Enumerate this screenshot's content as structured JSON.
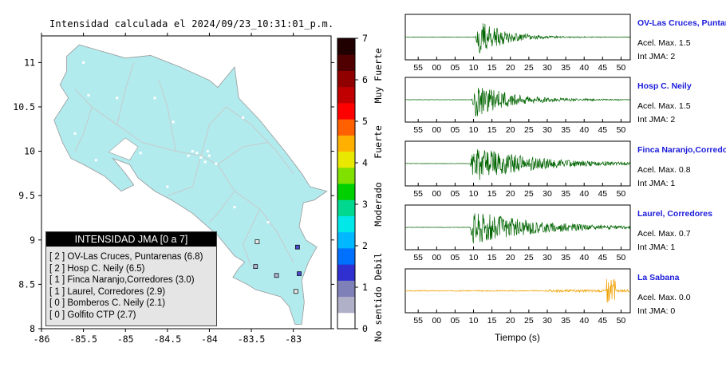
{
  "map": {
    "title": "Intensidad calculada el 2024/09/23_10:31:01_p.m.",
    "x_ticks": [
      "-86",
      "-85.5",
      "-85",
      "-84.5",
      "-84",
      "-83.5",
      "-83"
    ],
    "y_ticks": [
      "11",
      "10.5",
      "10",
      "9.5",
      "9",
      "8.5",
      "8"
    ],
    "land_color": "#b2ebee",
    "stations": [
      {
        "lon": -82.95,
        "lat": 8.92,
        "intensity": 2
      },
      {
        "lon": -82.93,
        "lat": 8.62,
        "intensity": 2
      },
      {
        "lon": -83.45,
        "lat": 8.7,
        "intensity": 1
      },
      {
        "lon": -83.2,
        "lat": 8.6,
        "intensity": 1
      },
      {
        "lon": -82.97,
        "lat": 8.42,
        "intensity": 0
      },
      {
        "lon": -83.43,
        "lat": 8.98,
        "intensity": 0
      }
    ]
  },
  "colorbar": {
    "ticks": [
      "0",
      "1",
      "2",
      "3",
      "4",
      "5",
      "6",
      "7"
    ],
    "labels": [
      "No sentido",
      "Debil",
      "Moderado",
      "Fuerte",
      "Muy Fuerte"
    ],
    "colors": [
      "#ffffff",
      "#b0b0c8",
      "#8080b8",
      "#3030d0",
      "#0070ff",
      "#00b8ff",
      "#00e8e8",
      "#00d890",
      "#00d000",
      "#80e000",
      "#e8e800",
      "#ffb000",
      "#ff6000",
      "#ff0000",
      "#c00000",
      "#900000",
      "#500000",
      "#200000"
    ]
  },
  "legend": {
    "title": "INTENSIDAD JMA [0 a 7]",
    "rows": [
      "[ 2 ]  OV-Las Cruces, Puntarenas (6.8)",
      "[ 2 ]  Hosp C. Neily (6.5)",
      "[ 1 ]  Finca Naranjo,Corredores (3.0)",
      "[ 1 ]  Laurel, Corredores (2.9)",
      "[ 0 ]  Bomberos C. Neily (2.1)",
      "[ 0 ]  Golfito CTP (2.7)"
    ]
  },
  "seismograms": {
    "x_ticks": [
      "55",
      "00",
      "05",
      "10",
      "15",
      "20",
      "25",
      "30",
      "35",
      "40",
      "45",
      "50"
    ],
    "xlabel": "Tiempo (s)",
    "accel_prefix": "Acel. Max.",
    "int_prefix": "Int JMA:",
    "traces": [
      {
        "station": "OV-Las Cruces, Puntar",
        "accel": "1.5",
        "int": "2",
        "color": "#006400",
        "onset": 10.5,
        "amp": 0.95,
        "decay": 0.14,
        "sd": 11
      },
      {
        "station": "Hosp C. Neily",
        "accel": "1.5",
        "int": "2",
        "color": "#006400",
        "onset": 9.5,
        "amp": 0.92,
        "decay": 0.1,
        "sd": 23
      },
      {
        "station": "Finca Naranjo,Corredores",
        "accel": "0.8",
        "int": "1",
        "color": "#006400",
        "onset": 9.0,
        "amp": 0.9,
        "decay": 0.06,
        "sd": 37
      },
      {
        "station": "Laurel, Corredores",
        "accel": "0.7",
        "int": "1",
        "color": "#006400",
        "onset": 9.0,
        "amp": 0.9,
        "decay": 0.06,
        "sd": 51
      },
      {
        "station": "La Sabana",
        "accel": "0.0",
        "int": "0",
        "color": "#f0a000",
        "onset": -7,
        "amp": 0.6,
        "decay": 0.0,
        "sd": 67
      }
    ]
  }
}
